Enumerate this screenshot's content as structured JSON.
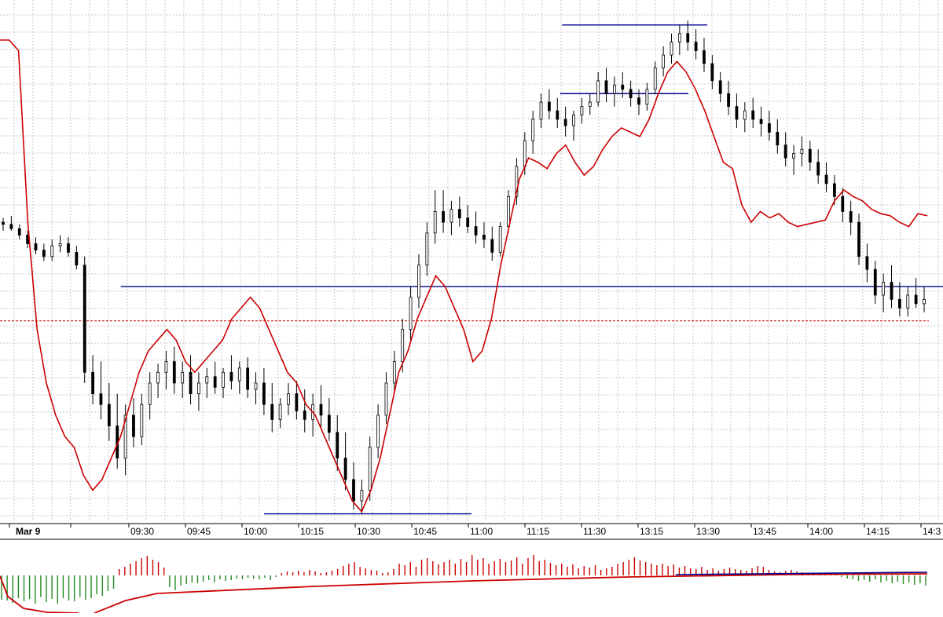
{
  "chart_data": {
    "type": "candlestick",
    "date_label": "Mar 9",
    "x_tick_labels": [
      "09:30",
      "09:45",
      "10:00",
      "10:15",
      "10:30",
      "10:45",
      "11:00",
      "11:15",
      "11:30",
      "13:15",
      "13:30",
      "13:45",
      "14:00",
      "14:15",
      "14:3"
    ],
    "grid": true,
    "colors": {
      "candle_up": "#ffffff",
      "candle_down": "#000000",
      "candle_outline": "#000000",
      "overlay_line": "#cc0000",
      "level_lines": "#00008b",
      "reference_line": "#cc0000",
      "volume_up": "#cc0000",
      "volume_down": "#228b22",
      "volume_avg": "#cc0000",
      "volume_zero": "#00008b",
      "grid": "#c8c8c8"
    },
    "price_series": [
      {
        "o": 0.3,
        "h": 0.32,
        "l": 0.26,
        "c": 0.29
      },
      {
        "o": 0.29,
        "h": 0.33,
        "l": 0.26,
        "c": 0.27
      },
      {
        "o": 0.27,
        "h": 0.29,
        "l": 0.22,
        "c": 0.24
      },
      {
        "o": 0.24,
        "h": 0.26,
        "l": 0.18,
        "c": 0.2
      },
      {
        "o": 0.2,
        "h": 0.23,
        "l": 0.15,
        "c": 0.17
      },
      {
        "o": 0.17,
        "h": 0.2,
        "l": 0.12,
        "c": 0.14
      },
      {
        "o": 0.14,
        "h": 0.22,
        "l": 0.12,
        "c": 0.19
      },
      {
        "o": 0.19,
        "h": 0.24,
        "l": 0.16,
        "c": 0.2
      },
      {
        "o": 0.2,
        "h": 0.23,
        "l": 0.14,
        "c": 0.16
      },
      {
        "o": 0.16,
        "h": 0.19,
        "l": 0.08,
        "c": 0.1
      },
      {
        "o": 0.1,
        "h": 0.14,
        "l": -0.45,
        "c": -0.4
      },
      {
        "o": -0.4,
        "h": -0.32,
        "l": -0.55,
        "c": -0.5
      },
      {
        "o": -0.5,
        "h": -0.35,
        "l": -0.62,
        "c": -0.55
      },
      {
        "o": -0.55,
        "h": -0.45,
        "l": -0.72,
        "c": -0.65
      },
      {
        "o": -0.65,
        "h": -0.5,
        "l": -0.85,
        "c": -0.8
      },
      {
        "o": -0.8,
        "h": -0.55,
        "l": -0.88,
        "c": -0.6
      },
      {
        "o": -0.6,
        "h": -0.52,
        "l": -0.75,
        "c": -0.7
      },
      {
        "o": -0.7,
        "h": -0.5,
        "l": -0.74,
        "c": -0.55
      },
      {
        "o": -0.55,
        "h": -0.4,
        "l": -0.62,
        "c": -0.45
      },
      {
        "o": -0.45,
        "h": -0.36,
        "l": -0.52,
        "c": -0.4
      },
      {
        "o": -0.4,
        "h": -0.3,
        "l": -0.48,
        "c": -0.35
      },
      {
        "o": -0.35,
        "h": -0.28,
        "l": -0.5,
        "c": -0.45
      },
      {
        "o": -0.45,
        "h": -0.35,
        "l": -0.52,
        "c": -0.4
      },
      {
        "o": -0.4,
        "h": -0.32,
        "l": -0.55,
        "c": -0.5
      },
      {
        "o": -0.5,
        "h": -0.4,
        "l": -0.58,
        "c": -0.45
      },
      {
        "o": -0.45,
        "h": -0.38,
        "l": -0.52,
        "c": -0.42
      },
      {
        "o": -0.42,
        "h": -0.35,
        "l": -0.5,
        "c": -0.47
      },
      {
        "o": -0.47,
        "h": -0.38,
        "l": -0.52,
        "c": -0.4
      },
      {
        "o": -0.4,
        "h": -0.32,
        "l": -0.48,
        "c": -0.44
      },
      {
        "o": -0.44,
        "h": -0.35,
        "l": -0.5,
        "c": -0.38
      },
      {
        "o": -0.38,
        "h": -0.33,
        "l": -0.52,
        "c": -0.48
      },
      {
        "o": -0.48,
        "h": -0.4,
        "l": -0.55,
        "c": -0.45
      },
      {
        "o": -0.45,
        "h": -0.38,
        "l": -0.6,
        "c": -0.55
      },
      {
        "o": -0.55,
        "h": -0.45,
        "l": -0.68,
        "c": -0.62
      },
      {
        "o": -0.62,
        "h": -0.52,
        "l": -0.66,
        "c": -0.55
      },
      {
        "o": -0.55,
        "h": -0.45,
        "l": -0.6,
        "c": -0.5
      },
      {
        "o": -0.5,
        "h": -0.44,
        "l": -0.62,
        "c": -0.58
      },
      {
        "o": -0.58,
        "h": -0.48,
        "l": -0.68,
        "c": -0.62
      },
      {
        "o": -0.62,
        "h": -0.5,
        "l": -0.7,
        "c": -0.55
      },
      {
        "o": -0.55,
        "h": -0.46,
        "l": -0.66,
        "c": -0.6
      },
      {
        "o": -0.6,
        "h": -0.52,
        "l": -0.72,
        "c": -0.68
      },
      {
        "o": -0.68,
        "h": -0.6,
        "l": -0.86,
        "c": -0.8
      },
      {
        "o": -0.8,
        "h": -0.68,
        "l": -0.95,
        "c": -0.9
      },
      {
        "o": -0.9,
        "h": -0.82,
        "l": -1.04,
        "c": -1.0
      },
      {
        "o": -1.0,
        "h": -0.9,
        "l": -1.06,
        "c": -0.95
      },
      {
        "o": -0.95,
        "h": -0.7,
        "l": -1.0,
        "c": -0.75
      },
      {
        "o": -0.75,
        "h": -0.55,
        "l": -0.8,
        "c": -0.6
      },
      {
        "o": -0.6,
        "h": -0.4,
        "l": -0.64,
        "c": -0.45
      },
      {
        "o": -0.45,
        "h": -0.3,
        "l": -0.5,
        "c": -0.35
      },
      {
        "o": -0.35,
        "h": -0.15,
        "l": -0.4,
        "c": -0.2
      },
      {
        "o": -0.2,
        "h": 0.0,
        "l": -0.25,
        "c": -0.05
      },
      {
        "o": -0.05,
        "h": 0.15,
        "l": -0.1,
        "c": 0.1
      },
      {
        "o": 0.1,
        "h": 0.3,
        "l": 0.05,
        "c": 0.25
      },
      {
        "o": 0.25,
        "h": 0.45,
        "l": 0.2,
        "c": 0.35
      },
      {
        "o": 0.35,
        "h": 0.45,
        "l": 0.25,
        "c": 0.3
      },
      {
        "o": 0.3,
        "h": 0.4,
        "l": 0.24,
        "c": 0.36
      },
      {
        "o": 0.36,
        "h": 0.42,
        "l": 0.28,
        "c": 0.32
      },
      {
        "o": 0.32,
        "h": 0.38,
        "l": 0.25,
        "c": 0.28
      },
      {
        "o": 0.28,
        "h": 0.35,
        "l": 0.2,
        "c": 0.24
      },
      {
        "o": 0.24,
        "h": 0.3,
        "l": 0.18,
        "c": 0.22
      },
      {
        "o": 0.22,
        "h": 0.28,
        "l": 0.12,
        "c": 0.16
      },
      {
        "o": 0.16,
        "h": 0.3,
        "l": 0.14,
        "c": 0.28
      },
      {
        "o": 0.28,
        "h": 0.45,
        "l": 0.25,
        "c": 0.42
      },
      {
        "o": 0.42,
        "h": 0.6,
        "l": 0.38,
        "c": 0.56
      },
      {
        "o": 0.56,
        "h": 0.72,
        "l": 0.52,
        "c": 0.68
      },
      {
        "o": 0.68,
        "h": 0.82,
        "l": 0.62,
        "c": 0.78
      },
      {
        "o": 0.78,
        "h": 0.9,
        "l": 0.74,
        "c": 0.86
      },
      {
        "o": 0.86,
        "h": 0.92,
        "l": 0.78,
        "c": 0.82
      },
      {
        "o": 0.82,
        "h": 0.88,
        "l": 0.74,
        "c": 0.78
      },
      {
        "o": 0.78,
        "h": 0.84,
        "l": 0.7,
        "c": 0.75
      },
      {
        "o": 0.75,
        "h": 0.82,
        "l": 0.68,
        "c": 0.8
      },
      {
        "o": 0.8,
        "h": 0.88,
        "l": 0.76,
        "c": 0.84
      },
      {
        "o": 0.84,
        "h": 0.9,
        "l": 0.8,
        "c": 0.86
      },
      {
        "o": 0.86,
        "h": 1.0,
        "l": 0.84,
        "c": 0.96
      },
      {
        "o": 0.96,
        "h": 1.02,
        "l": 0.86,
        "c": 0.9
      },
      {
        "o": 0.9,
        "h": 0.98,
        "l": 0.84,
        "c": 0.94
      },
      {
        "o": 0.94,
        "h": 1.0,
        "l": 0.88,
        "c": 0.92
      },
      {
        "o": 0.92,
        "h": 0.96,
        "l": 0.84,
        "c": 0.88
      },
      {
        "o": 0.88,
        "h": 0.92,
        "l": 0.8,
        "c": 0.85
      },
      {
        "o": 0.85,
        "h": 0.95,
        "l": 0.82,
        "c": 0.92
      },
      {
        "o": 0.92,
        "h": 1.05,
        "l": 0.9,
        "c": 1.02
      },
      {
        "o": 1.02,
        "h": 1.12,
        "l": 0.98,
        "c": 1.08
      },
      {
        "o": 1.08,
        "h": 1.18,
        "l": 1.04,
        "c": 1.14
      },
      {
        "o": 1.14,
        "h": 1.22,
        "l": 1.08,
        "c": 1.18
      },
      {
        "o": 1.18,
        "h": 1.24,
        "l": 1.1,
        "c": 1.14
      },
      {
        "o": 1.14,
        "h": 1.2,
        "l": 1.06,
        "c": 1.1
      },
      {
        "o": 1.1,
        "h": 1.16,
        "l": 1.0,
        "c": 1.04
      },
      {
        "o": 1.04,
        "h": 1.08,
        "l": 0.92,
        "c": 0.96
      },
      {
        "o": 0.96,
        "h": 1.0,
        "l": 0.86,
        "c": 0.9
      },
      {
        "o": 0.9,
        "h": 0.96,
        "l": 0.8,
        "c": 0.84
      },
      {
        "o": 0.84,
        "h": 0.9,
        "l": 0.74,
        "c": 0.78
      },
      {
        "o": 0.78,
        "h": 0.86,
        "l": 0.72,
        "c": 0.82
      },
      {
        "o": 0.82,
        "h": 0.88,
        "l": 0.74,
        "c": 0.78
      },
      {
        "o": 0.78,
        "h": 0.84,
        "l": 0.7,
        "c": 0.76
      },
      {
        "o": 0.76,
        "h": 0.82,
        "l": 0.68,
        "c": 0.72
      },
      {
        "o": 0.72,
        "h": 0.78,
        "l": 0.62,
        "c": 0.66
      },
      {
        "o": 0.66,
        "h": 0.72,
        "l": 0.56,
        "c": 0.6
      },
      {
        "o": 0.6,
        "h": 0.66,
        "l": 0.52,
        "c": 0.62
      },
      {
        "o": 0.62,
        "h": 0.7,
        "l": 0.56,
        "c": 0.64
      },
      {
        "o": 0.64,
        "h": 0.68,
        "l": 0.54,
        "c": 0.58
      },
      {
        "o": 0.58,
        "h": 0.64,
        "l": 0.48,
        "c": 0.52
      },
      {
        "o": 0.52,
        "h": 0.58,
        "l": 0.44,
        "c": 0.48
      },
      {
        "o": 0.48,
        "h": 0.52,
        "l": 0.38,
        "c": 0.42
      },
      {
        "o": 0.42,
        "h": 0.46,
        "l": 0.3,
        "c": 0.35
      },
      {
        "o": 0.35,
        "h": 0.4,
        "l": 0.24,
        "c": 0.3
      },
      {
        "o": 0.3,
        "h": 0.34,
        "l": 0.1,
        "c": 0.14
      },
      {
        "o": 0.14,
        "h": 0.2,
        "l": 0.02,
        "c": 0.08
      },
      {
        "o": 0.08,
        "h": 0.12,
        "l": -0.08,
        "c": -0.04
      },
      {
        "o": -0.04,
        "h": 0.06,
        "l": -0.12,
        "c": 0.02
      },
      {
        "o": 0.02,
        "h": 0.1,
        "l": -0.1,
        "c": -0.06
      },
      {
        "o": -0.06,
        "h": 0.02,
        "l": -0.14,
        "c": -0.1
      },
      {
        "o": -0.1,
        "h": 0.0,
        "l": -0.14,
        "c": -0.04
      },
      {
        "o": -0.04,
        "h": 0.04,
        "l": -0.1,
        "c": -0.08
      },
      {
        "o": -0.08,
        "h": 0.0,
        "l": -0.12,
        "c": -0.06
      }
    ],
    "overlay_line": [
      1.15,
      1.15,
      1.1,
      0.3,
      -0.2,
      -0.45,
      -0.6,
      -0.7,
      -0.75,
      -0.88,
      -0.95,
      -0.9,
      -0.8,
      -0.7,
      -0.55,
      -0.4,
      -0.3,
      -0.25,
      -0.2,
      -0.25,
      -0.35,
      -0.4,
      -0.35,
      -0.3,
      -0.25,
      -0.15,
      -0.1,
      -0.05,
      -0.1,
      -0.2,
      -0.3,
      -0.4,
      -0.45,
      -0.55,
      -0.6,
      -0.7,
      -0.8,
      -0.9,
      -1.0,
      -1.05,
      -0.95,
      -0.8,
      -0.6,
      -0.4,
      -0.3,
      -0.15,
      -0.05,
      0.05,
      0.0,
      -0.1,
      -0.2,
      -0.35,
      -0.3,
      -0.15,
      0.1,
      0.3,
      0.5,
      0.6,
      0.58,
      0.55,
      0.62,
      0.66,
      0.58,
      0.52,
      0.56,
      0.64,
      0.7,
      0.74,
      0.72,
      0.7,
      0.78,
      0.9,
      1.0,
      1.05,
      1.0,
      0.92,
      0.82,
      0.7,
      0.58,
      0.55,
      0.38,
      0.3,
      0.35,
      0.32,
      0.34,
      0.3,
      0.28,
      0.29,
      0.3,
      0.31,
      0.4,
      0.45,
      0.42,
      0.4,
      0.36,
      0.34,
      0.33,
      0.3,
      0.28,
      0.34,
      0.33
    ],
    "level_lines": [
      {
        "label_y": 1.22,
        "from": 0.596,
        "to": 0.75
      },
      {
        "label_y": 0.9,
        "from": 0.594,
        "to": 0.73
      },
      {
        "label_y": 0.0,
        "from": 0.128,
        "to": 1.0
      },
      {
        "label_y": -1.06,
        "from": 0.28,
        "to": 0.5
      }
    ],
    "reference_line": -0.16,
    "volume_series": [
      -0.62,
      -0.64,
      -0.7,
      -0.58,
      -0.66,
      -0.6,
      -0.72,
      -0.55,
      -0.68,
      -0.6,
      -0.72,
      -0.58,
      -0.64,
      -0.66,
      -0.55,
      -0.62,
      -0.58,
      -0.48,
      -0.52,
      -0.4,
      -0.34,
      0.16,
      0.22,
      0.3,
      0.36,
      0.44,
      0.5,
      0.4,
      0.34,
      0.2,
      -0.3,
      -0.38,
      -0.26,
      -0.22,
      -0.18,
      -0.2,
      -0.16,
      -0.12,
      -0.18,
      -0.1,
      -0.14,
      -0.12,
      -0.08,
      -0.1,
      -0.06,
      -0.08,
      -0.1,
      -0.06,
      -0.12,
      -0.04,
      0.06,
      0.1,
      0.08,
      0.12,
      0.08,
      0.14,
      0.1,
      0.06,
      0.08,
      0.12,
      0.16,
      0.24,
      0.3,
      0.34,
      0.22,
      0.18,
      0.14,
      0.12,
      0.06,
      0.08,
      0.16,
      0.3,
      0.26,
      0.34,
      0.22,
      0.4,
      0.44,
      0.36,
      0.28,
      0.34,
      0.4,
      0.3,
      0.42,
      0.34,
      0.52,
      0.4,
      0.44,
      0.3,
      0.36,
      0.42,
      0.34,
      0.38,
      0.46,
      0.3,
      0.44,
      0.52,
      0.36,
      0.4,
      0.32,
      0.26,
      0.3,
      0.22,
      0.28,
      0.18,
      0.24,
      0.2,
      0.26,
      0.14,
      0.18,
      0.22,
      0.3,
      0.34,
      0.4,
      0.46,
      0.38,
      0.34,
      0.3,
      0.26,
      0.3,
      0.24,
      0.28,
      0.2,
      0.24,
      0.18,
      0.16,
      0.22,
      0.14,
      0.18,
      0.12,
      0.16,
      0.2,
      0.16,
      0.14,
      0.12,
      0.18,
      0.24,
      0.22,
      0.14,
      0.1,
      0.08,
      0.12,
      0.14,
      0.1,
      0.08,
      0.06,
      0.04,
      0.06,
      0.04,
      0.06,
      0.02,
      -0.04,
      -0.08,
      -0.1,
      -0.14,
      -0.12,
      -0.16,
      -0.1,
      -0.18,
      -0.14,
      -0.2,
      -0.16,
      -0.22,
      -0.18,
      -0.24,
      -0.2,
      -0.26
    ]
  }
}
